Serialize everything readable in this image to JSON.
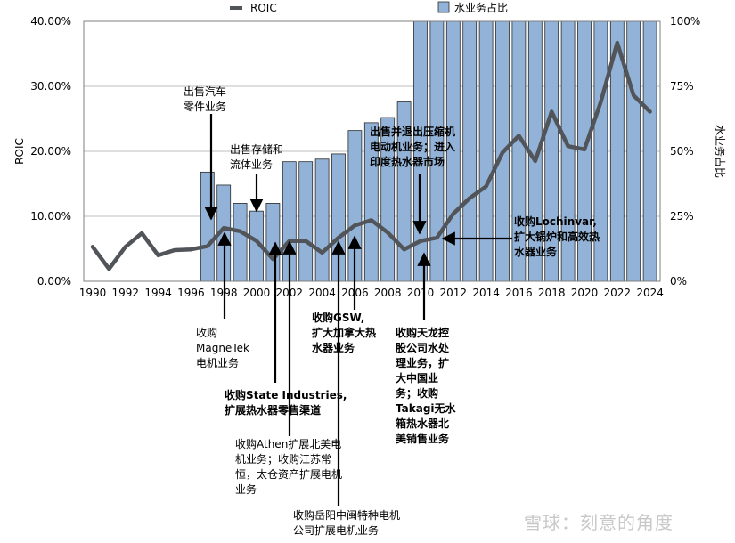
{
  "chart_data": {
    "type": "bar+line",
    "ylabel": "ROIC",
    "y2label": "水业务占比",
    "ylim": [
      0,
      40
    ],
    "y2lim": [
      0,
      100
    ],
    "yticks": [
      "0.00%",
      "10.00%",
      "20.00%",
      "30.00%",
      "40.00%"
    ],
    "y2ticks": [
      "0%",
      "25%",
      "50%",
      "75%",
      "100%"
    ],
    "xticks": [
      "1990",
      "1992",
      "1994",
      "1996",
      "1998",
      "2000",
      "2002",
      "2004",
      "2006",
      "2008",
      "2010",
      "2012",
      "2014",
      "2016",
      "2018",
      "2020",
      "2022",
      "2024"
    ],
    "legend": {
      "line": "ROIC",
      "bar": "水业务占比",
      "placement": "top"
    },
    "colors": {
      "bar": "#92b3d7",
      "bar_edge": "#2b2b2b",
      "line": "#515459",
      "grid": "#bfbfbf"
    },
    "bar_series": {
      "name": "水业务占比",
      "x": [
        1997,
        1998,
        1999,
        2000,
        2001,
        2002,
        2003,
        2004,
        2005,
        2006,
        2007,
        2008,
        2009,
        2010,
        2011,
        2012,
        2013,
        2014,
        2015,
        2016,
        2017,
        2018,
        2019,
        2020,
        2021,
        2022,
        2023,
        2024
      ],
      "values": [
        42,
        37,
        30,
        27,
        30,
        46,
        46,
        47,
        49,
        58,
        61,
        63,
        69,
        100,
        100,
        100,
        100,
        100,
        100,
        100,
        100,
        100,
        100,
        100,
        100,
        100,
        100,
        100
      ]
    },
    "line_series": {
      "name": "ROIC",
      "x": [
        1990,
        1991,
        1992,
        1993,
        1994,
        1995,
        1996,
        1997,
        1998,
        1999,
        2000,
        2001,
        2002,
        2003,
        2004,
        2005,
        2006,
        2007,
        2008,
        2009,
        2010,
        2011,
        2012,
        2013,
        2014,
        2015,
        2016,
        2017,
        2018,
        2019,
        2020,
        2021,
        2022,
        2023,
        2024
      ],
      "values": [
        5.3,
        1.9,
        5.3,
        7.4,
        4.0,
        4.8,
        4.9,
        5.4,
        8.2,
        7.7,
        6.2,
        3.4,
        6.2,
        6.2,
        4.4,
        6.7,
        8.6,
        9.4,
        7.5,
        4.9,
        6.2,
        6.7,
        10.4,
        12.8,
        14.6,
        19.8,
        22.4,
        18.5,
        26.1,
        20.8,
        20.3,
        27.6,
        36.7,
        28.6,
        26.1
      ]
    },
    "annotations": [
      {
        "text": "出售汽车\n零件业务",
        "bold": false,
        "year": 1997,
        "roic": 5.4
      },
      {
        "text": "出售存储和\n流体业务",
        "bold": false,
        "year": 2000,
        "roic": 6.2
      },
      {
        "text": "出售并退出压缩机\n电动机业务；进入\n印度热水器市场",
        "bold": true,
        "year": 2010,
        "roic": 6.2
      },
      {
        "text": "收购Lochinvar,\n扩大锅炉和高效热\n水器业务",
        "bold": true,
        "year": 2011,
        "roic": 6.7
      },
      {
        "text": "收购GSW,\n扩大加拿大热\n水器业务",
        "bold": true,
        "year": 2006,
        "roic": 8.6
      },
      {
        "text": "收购天龙控\n股公司水处\n理业务，扩\n大中国业\n务；收购\nTakagi无水\n箱热水器北\n美销售业务",
        "bold": true,
        "year": 2010,
        "roic": 6.2
      },
      {
        "text": "收购\nMagneTek\n电机业务",
        "bold": false,
        "year": 1998,
        "roic": 8.2
      },
      {
        "text": "收购State Industries,\n扩展热水器零售渠道",
        "bold": true,
        "year": 2001,
        "roic": 3.4
      },
      {
        "text": "收购Athen扩展北美电\n机业务；收购江苏常\n恒，太仓资产扩展电机\n业务",
        "bold": false,
        "year": 2002,
        "roic": 6.2
      },
      {
        "text": "收购岳阳中闽特种电机\n公司扩展电机业务",
        "bold": false,
        "year": 2005,
        "roic": 6.7
      }
    ]
  },
  "watermark": "雪球：刻意的角度"
}
